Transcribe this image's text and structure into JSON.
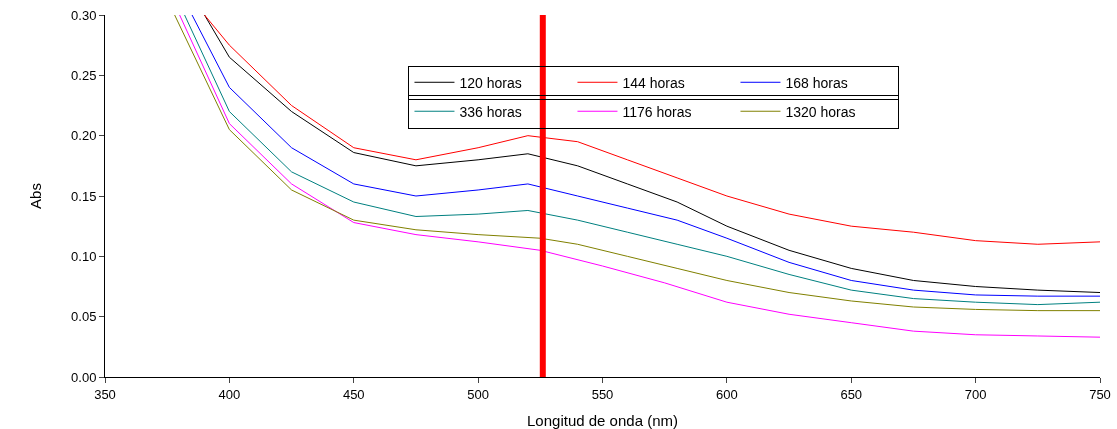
{
  "chart_data": {
    "type": "line",
    "xlabel": "Longitud de onda (nm)",
    "ylabel": "Abs",
    "xlim": [
      350,
      750
    ],
    "xticks": [
      350,
      400,
      450,
      500,
      550,
      600,
      650,
      700,
      750
    ],
    "ylim": [
      0,
      0.3
    ],
    "yticks": [
      {
        "value": 0,
        "label": "0.00"
      },
      {
        "value": 0.05,
        "label": "0.05"
      },
      {
        "value": 0.1,
        "label": "0.10"
      },
      {
        "value": 0.15,
        "label": "0.15"
      },
      {
        "value": 0.2,
        "label": "0.20"
      },
      {
        "value": 0.25,
        "label": "0.25"
      },
      {
        "value": 0.3,
        "label": "0.30"
      }
    ],
    "grid": false,
    "legend": "top",
    "line_style": "solid",
    "marker": "none",
    "x": [
      390,
      400,
      425,
      450,
      475,
      500,
      520,
      540,
      560,
      580,
      600,
      625,
      650,
      675,
      700,
      725,
      750
    ],
    "series": [
      {
        "name": "120 horas",
        "color": "#000000",
        "values": [
          0.3,
          0.265,
          0.22,
          0.186,
          0.175,
          0.18,
          0.185,
          0.175,
          0.16,
          0.145,
          0.125,
          0.105,
          0.09,
          0.08,
          0.075,
          0.072,
          0.07
        ]
      },
      {
        "name": "144 horas",
        "color": "#ff0000",
        "values": [
          0.3,
          0.275,
          0.225,
          0.19,
          0.18,
          0.19,
          0.2,
          0.195,
          0.18,
          0.165,
          0.15,
          0.135,
          0.125,
          0.12,
          0.113,
          0.11,
          0.112
        ]
      },
      {
        "name": "168 horas",
        "color": "#0000ff",
        "x": [
          385,
          400,
          425,
          450,
          475,
          500,
          520,
          540,
          560,
          580,
          600,
          625,
          650,
          675,
          700,
          725,
          750
        ],
        "values": [
          0.3,
          0.24,
          0.19,
          0.16,
          0.15,
          0.155,
          0.16,
          0.15,
          0.14,
          0.13,
          0.115,
          0.095,
          0.08,
          0.072,
          0.068,
          0.067,
          0.067
        ]
      },
      {
        "name": "336 horas",
        "color": "#008080",
        "x": [
          382,
          400,
          425,
          450,
          475,
          500,
          520,
          540,
          560,
          580,
          600,
          625,
          650,
          675,
          700,
          725,
          750
        ],
        "values": [
          0.3,
          0.22,
          0.17,
          0.145,
          0.133,
          0.135,
          0.138,
          0.13,
          0.12,
          0.11,
          0.1,
          0.085,
          0.072,
          0.065,
          0.062,
          0.06,
          0.062
        ]
      },
      {
        "name": "1176 horas",
        "color": "#ff00ff",
        "x": [
          380,
          400,
          425,
          450,
          475,
          500,
          525,
          550,
          575,
          600,
          625,
          650,
          675,
          700,
          725,
          750
        ],
        "values": [
          0.3,
          0.21,
          0.16,
          0.128,
          0.118,
          0.112,
          0.105,
          0.092,
          0.078,
          0.062,
          0.052,
          0.045,
          0.038,
          0.035,
          0.034,
          0.033
        ]
      },
      {
        "name": "1320 horas",
        "color": "#808000",
        "x": [
          378,
          400,
          425,
          450,
          475,
          500,
          525,
          540,
          560,
          580,
          600,
          625,
          650,
          675,
          700,
          725,
          750
        ],
        "values": [
          0.3,
          0.205,
          0.155,
          0.13,
          0.122,
          0.118,
          0.115,
          0.11,
          0.1,
          0.09,
          0.08,
          0.07,
          0.063,
          0.058,
          0.056,
          0.055,
          0.055
        ]
      }
    ],
    "ref_lines": [
      {
        "axis": "x",
        "value": 526,
        "color": "#ff0000",
        "line_style": "solid"
      }
    ]
  }
}
